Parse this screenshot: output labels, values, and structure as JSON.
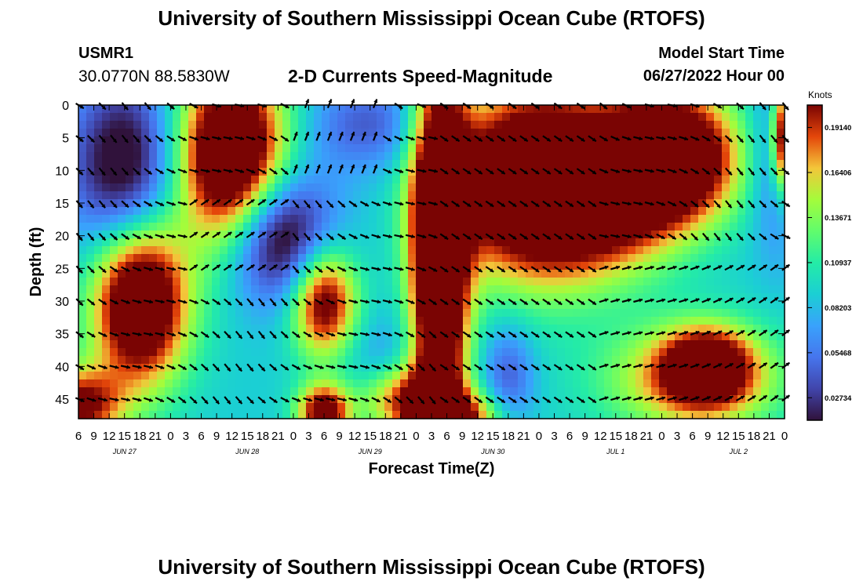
{
  "header": {
    "title": "University of Southern Mississippi Ocean Cube (RTOFS)",
    "station_id": "USMR1",
    "station_coords": "30.0770N  88.5830W",
    "subtitle": "2-D Currents Speed-Magnitude",
    "model_start_label": "Model Start Time",
    "model_start_value": "06/27/2022 Hour 00"
  },
  "footer": {
    "title": "University of Southern Mississippi Ocean Cube (RTOFS)"
  },
  "chart_data": {
    "type": "heatmap",
    "title": "2-D Currents Speed-Magnitude",
    "xlabel": "Forecast Time(Z)",
    "ylabel": "Depth (ft)",
    "x_tick_labels": [
      "6",
      "9",
      "12",
      "15",
      "18",
      "21",
      "0",
      "3",
      "6",
      "9",
      "12",
      "15",
      "18",
      "21",
      "0",
      "3",
      "6",
      "9",
      "12",
      "15",
      "18",
      "21",
      "0",
      "3",
      "6",
      "9",
      "12",
      "15",
      "18",
      "21",
      "0",
      "3",
      "6",
      "9",
      "12",
      "15",
      "18",
      "21",
      "0",
      "3",
      "6",
      "9",
      "12",
      "15",
      "18",
      "21",
      "0"
    ],
    "x_day_labels": [
      {
        "label": "JUN 27",
        "tick_index": 3
      },
      {
        "label": "JUN 28",
        "tick_index": 11
      },
      {
        "label": "JUN 29",
        "tick_index": 19
      },
      {
        "label": "JUN 30",
        "tick_index": 27
      },
      {
        "label": "JUL 1",
        "tick_index": 35
      },
      {
        "label": "JUL 2",
        "tick_index": 43
      }
    ],
    "y_ticks": [
      0,
      5,
      10,
      15,
      20,
      25,
      30,
      35,
      40,
      45
    ],
    "y_range": [
      0,
      48
    ],
    "colorbar": {
      "unit": "Knots",
      "ticks": [
        "0.19140",
        "0.16406",
        "0.13671",
        "0.10937",
        "0.08203",
        "0.05468",
        "0.02734"
      ],
      "range": [
        0.0137,
        0.205
      ]
    },
    "arrow_depths": [
      0,
      5,
      10,
      15,
      20,
      25,
      30,
      35,
      40,
      45
    ],
    "speed_field_note": "approximate contour field; colors estimated from image",
    "speed_blobs": [
      {
        "t": 4,
        "d": 30,
        "st": 2.2,
        "sd": 9,
        "v": 0.18
      },
      {
        "t": 10,
        "d": 8,
        "st": 2.5,
        "sd": 10,
        "v": 0.19
      },
      {
        "t": 13,
        "d": 20,
        "st": 2.5,
        "sd": 7,
        "v": -0.12
      },
      {
        "t": 3,
        "d": 10,
        "st": 2.5,
        "sd": 10,
        "v": -0.1
      },
      {
        "t": 16,
        "d": 30,
        "st": 1.5,
        "sd": 6,
        "v": 0.14
      },
      {
        "t": 16,
        "d": 47,
        "st": 1.2,
        "sd": 3,
        "v": 0.14
      },
      {
        "t": 19,
        "d": 3,
        "st": 3,
        "sd": 5,
        "v": -0.05
      },
      {
        "t": 20,
        "d": 42,
        "st": 2,
        "sd": 6,
        "v": -0.04
      },
      {
        "t": 21,
        "d": 45,
        "st": 2,
        "sd": 4,
        "v": 0.12
      },
      {
        "t": 23.5,
        "d": 24,
        "st": 1.3,
        "sd": 22,
        "v": 0.2
      },
      {
        "t": 30,
        "d": 12,
        "st": 4,
        "sd": 10,
        "v": 0.21
      },
      {
        "t": 35,
        "d": 18,
        "st": 3,
        "sd": 6,
        "v": 0.05
      },
      {
        "t": 38.5,
        "d": 8,
        "st": 3,
        "sd": 7,
        "v": 0.2
      },
      {
        "t": 40,
        "d": 42,
        "st": 4,
        "sd": 6,
        "v": 0.09
      },
      {
        "t": 41,
        "d": 40,
        "st": 2,
        "sd": 4,
        "v": 0.12
      },
      {
        "t": 45.5,
        "d": 8,
        "st": 1.2,
        "sd": 10,
        "v": -0.05
      },
      {
        "t": 46,
        "d": 5,
        "st": 0.6,
        "sd": 6,
        "v": 0.16
      },
      {
        "t": 25,
        "d": 48,
        "st": 2,
        "sd": 3,
        "v": 0.1
      },
      {
        "t": 28,
        "d": 42,
        "st": 1.2,
        "sd": 6,
        "v": -0.05
      },
      {
        "t": 0,
        "d": 46,
        "st": 2,
        "sd": 4,
        "v": 0.12
      }
    ],
    "speed_base": 0.09
  }
}
